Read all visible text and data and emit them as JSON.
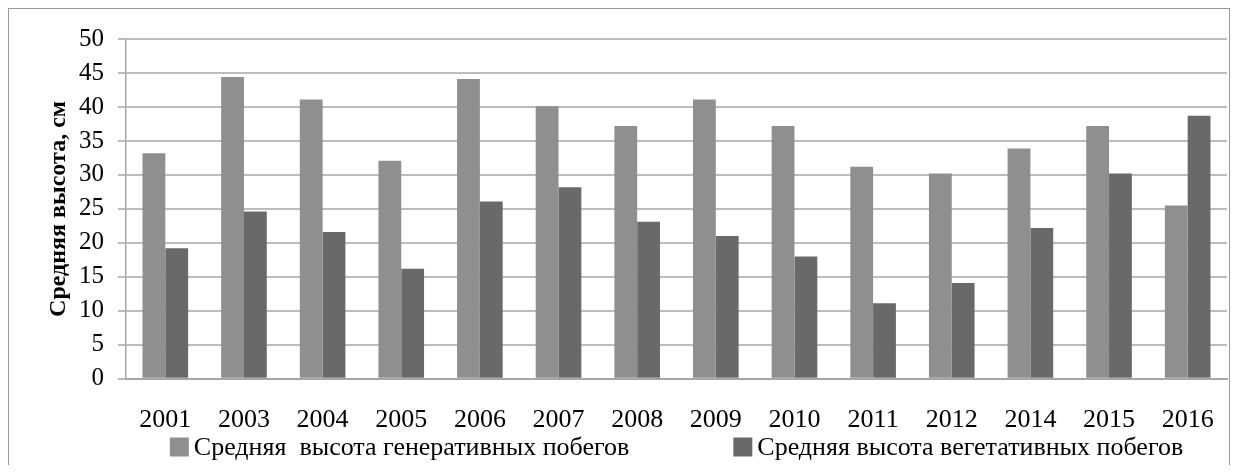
{
  "chart_data": {
    "type": "bar",
    "ylabel": "Средняя высота, см",
    "categories": [
      "2001",
      "2003",
      "2004",
      "2005",
      "2006",
      "2007",
      "2008",
      "2009",
      "2010",
      "2011",
      "2012",
      "2014",
      "2015",
      "2016"
    ],
    "series": [
      {
        "name": "Средняя  высота генеративных побегов",
        "color": "#8f8f8f",
        "values": [
          33.2,
          44.4,
          41.1,
          32.1,
          44.1,
          40.1,
          37.2,
          41.1,
          37.2,
          31.2,
          30.2,
          33.9,
          37.2,
          25.5
        ]
      },
      {
        "name": "Средняя высота вегетативных побегов",
        "color": "#696969",
        "values": [
          19.2,
          24.6,
          21.6,
          16.2,
          26.1,
          28.2,
          23.1,
          21.0,
          18.0,
          11.1,
          14.1,
          22.2,
          30.2,
          38.7
        ]
      }
    ],
    "ylim": [
      0,
      50
    ],
    "yticks": [
      0,
      5,
      10,
      15,
      20,
      25,
      30,
      35,
      40,
      45,
      50
    ],
    "grid": "y",
    "legend": "bottom"
  }
}
